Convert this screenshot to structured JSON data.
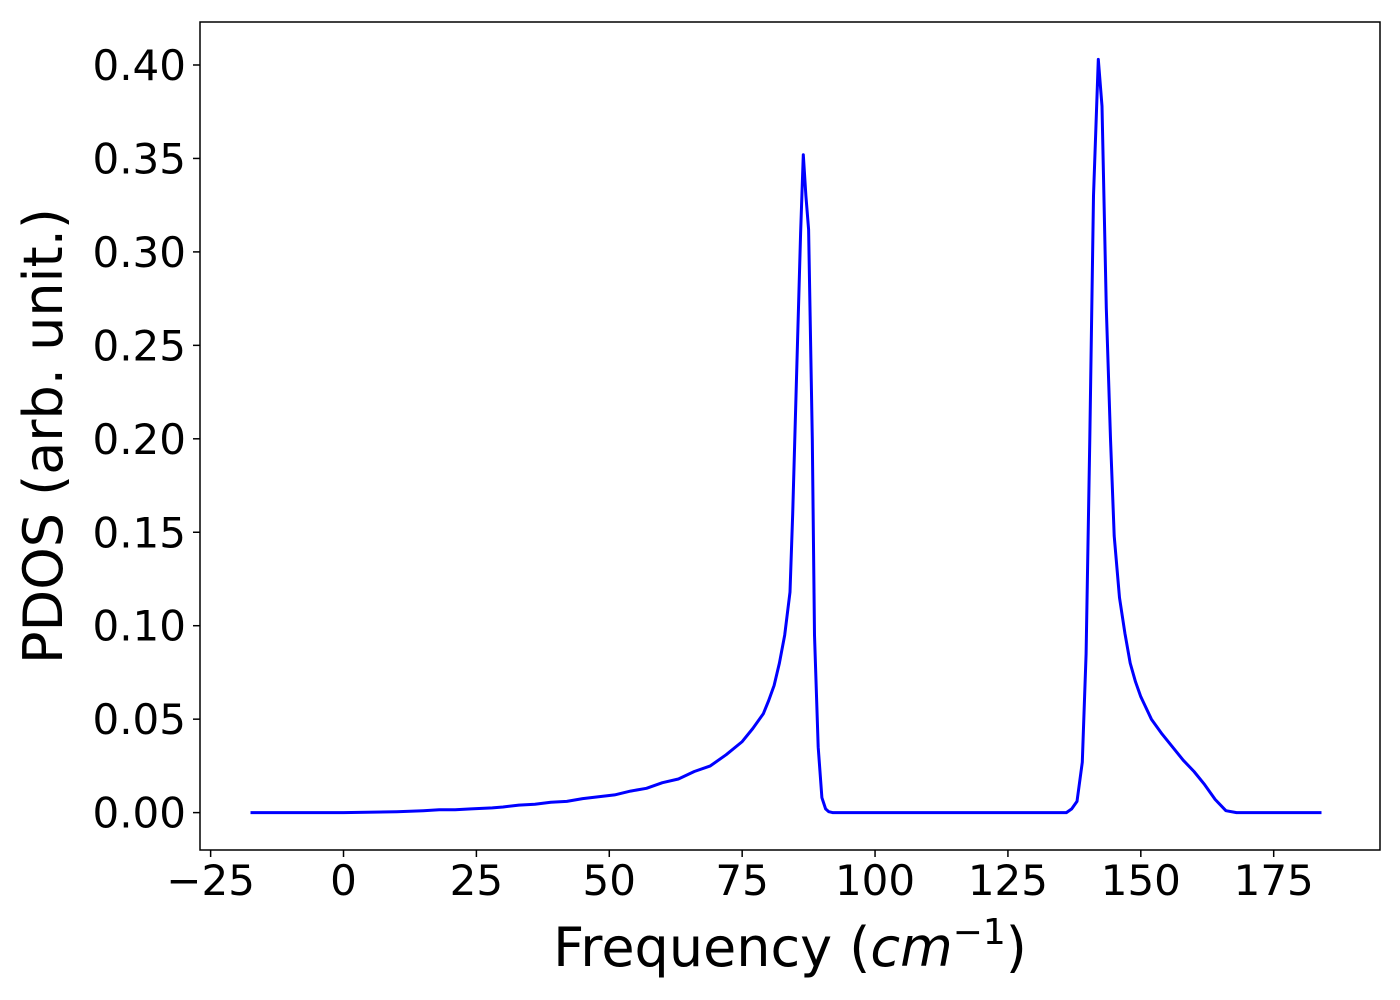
{
  "chart_data": {
    "type": "line",
    "xlabel_main": "Frequency (",
    "xlabel_math_base": "cm",
    "xlabel_math_exp": "−1",
    "xlabel_close": ")",
    "ylabel": "PDOS (arb. unit.)",
    "xlim": [
      -27,
      195
    ],
    "ylim": [
      -0.02,
      0.423
    ],
    "x_ticks": [
      -25,
      0,
      25,
      50,
      75,
      100,
      125,
      150,
      175
    ],
    "x_tick_labels": [
      "−25",
      "0",
      "25",
      "50",
      "75",
      "100",
      "125",
      "150",
      "175"
    ],
    "y_ticks": [
      0.0,
      0.05,
      0.1,
      0.15,
      0.2,
      0.25,
      0.3,
      0.35,
      0.4
    ],
    "y_tick_labels": [
      "0.00",
      "0.05",
      "0.10",
      "0.15",
      "0.20",
      "0.25",
      "0.30",
      "0.35",
      "0.40"
    ],
    "grid": false,
    "line_color": "#0000ff",
    "series": [
      {
        "x": [
          -17.5,
          0,
          10,
          15,
          18,
          21,
          24,
          28,
          30,
          33,
          36,
          39,
          42,
          45,
          48,
          51,
          54,
          57,
          60,
          63,
          66,
          69,
          72,
          75,
          77,
          79,
          80,
          81,
          82,
          83,
          84,
          84.5,
          85.3,
          86,
          86.5,
          87,
          87.5,
          88.2,
          88.6,
          89.3,
          90,
          90.7,
          91.3,
          92,
          92.7,
          93.4,
          94.1,
          95,
          100,
          130,
          136,
          137,
          138,
          139,
          139.7,
          140.4,
          141.1,
          142,
          142.7,
          143.5,
          144.3,
          145,
          146,
          147,
          148,
          149,
          150,
          152,
          154,
          156,
          158,
          160,
          162,
          164,
          166,
          168,
          170,
          172,
          175,
          184
        ],
        "y": [
          0.0,
          0.0,
          0.0005,
          0.001,
          0.0015,
          0.0015,
          0.002,
          0.0025,
          0.003,
          0.004,
          0.0045,
          0.0055,
          0.006,
          0.0075,
          0.0085,
          0.0095,
          0.0115,
          0.013,
          0.016,
          0.018,
          0.022,
          0.025,
          0.031,
          0.038,
          0.045,
          0.053,
          0.06,
          0.068,
          0.08,
          0.095,
          0.118,
          0.16,
          0.24,
          0.31,
          0.352,
          0.33,
          0.312,
          0.2,
          0.095,
          0.035,
          0.008,
          0.002,
          0.0005,
          0.0,
          0.0,
          0.0,
          0.0,
          0.0,
          0.0,
          0.0,
          0.0,
          0.002,
          0.006,
          0.027,
          0.085,
          0.2,
          0.33,
          0.403,
          0.378,
          0.27,
          0.2,
          0.148,
          0.115,
          0.096,
          0.08,
          0.07,
          0.062,
          0.05,
          0.042,
          0.035,
          0.028,
          0.022,
          0.015,
          0.007,
          0.001,
          0.0,
          0.0,
          0.0,
          0.0,
          0.0
        ]
      }
    ]
  }
}
